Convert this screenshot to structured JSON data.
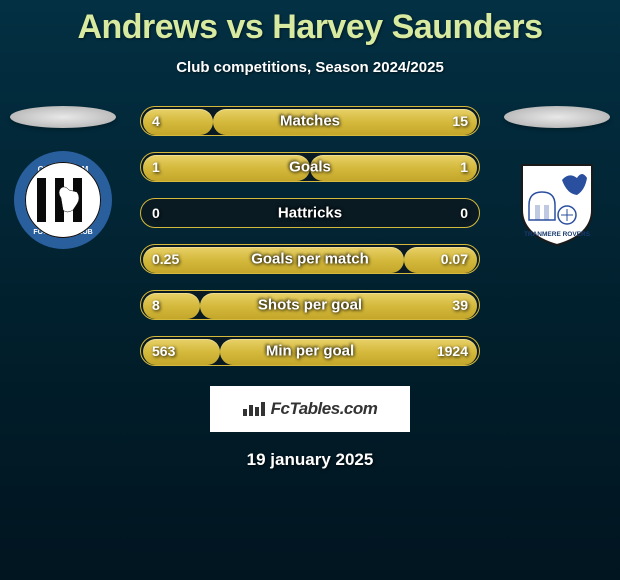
{
  "title": "Andrews vs Harvey Saunders",
  "subtitle": "Club competitions, Season 2024/2025",
  "date": "19 january 2025",
  "watermark": "FcTables.com",
  "bar_track_color": "#0a1a22",
  "bar_border_color": "#d4b93c",
  "stats": [
    {
      "label": "Matches",
      "left_val": "4",
      "right_val": "15",
      "left_pct": 21,
      "right_pct": 79
    },
    {
      "label": "Goals",
      "left_val": "1",
      "right_val": "1",
      "left_pct": 50,
      "right_pct": 50
    },
    {
      "label": "Hattricks",
      "left_val": "0",
      "right_val": "0",
      "left_pct": 0,
      "right_pct": 0
    },
    {
      "label": "Goals per match",
      "left_val": "0.25",
      "right_val": "0.07",
      "left_pct": 78,
      "right_pct": 22
    },
    {
      "label": "Shots per goal",
      "left_val": "8",
      "right_val": "39",
      "left_pct": 17,
      "right_pct": 83
    },
    {
      "label": "Min per goal",
      "left_val": "563",
      "right_val": "1924",
      "left_pct": 23,
      "right_pct": 77
    }
  ],
  "left_club": {
    "name": "Gillingham",
    "badge_colors": {
      "stripe_a": "#0a0a0a",
      "stripe_b": "#ffffff",
      "ring": "#2a5f9e",
      "ring_text": "#ffffff"
    }
  },
  "right_club": {
    "name": "Tranmere Rovers",
    "badge_colors": {
      "shield": "#ffffff",
      "accent": "#2a4f9e",
      "outline": "#1a1a1a"
    }
  }
}
